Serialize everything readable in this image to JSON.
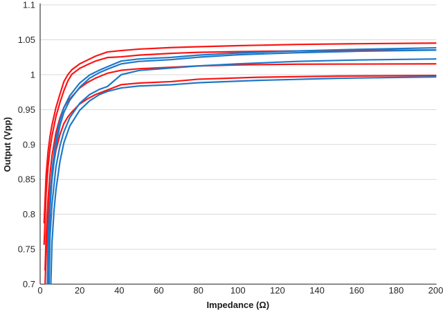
{
  "chart_data": {
    "type": "line",
    "xlabel": "Impedance (Ω)",
    "ylabel": "Output (Vpp)",
    "xlim": [
      0,
      200
    ],
    "ylim": [
      0.7,
      1.1
    ],
    "grid": "horizontal",
    "legend": "none",
    "colors": {
      "red": "#fb1414",
      "blue": "#1e78c8",
      "gridline": "#d9d9d9",
      "axis": "#4a4a4a",
      "tick_text": "#262626",
      "title_text": "#1a1a1a"
    },
    "x_ticks": [
      {
        "v": 0,
        "label": "0"
      },
      {
        "v": 20,
        "label": "20"
      },
      {
        "v": 40,
        "label": "40"
      },
      {
        "v": 60,
        "label": "60"
      },
      {
        "v": 80,
        "label": "80"
      },
      {
        "v": 100,
        "label": "100"
      },
      {
        "v": 120,
        "label": "120"
      },
      {
        "v": 140,
        "label": "140"
      },
      {
        "v": 160,
        "label": "160"
      },
      {
        "v": 180,
        "label": "180"
      },
      {
        "v": 200,
        "label": "200"
      }
    ],
    "y_ticks": [
      {
        "v": 1.1,
        "label": "1.1"
      },
      {
        "v": 1.05,
        "label": "1.05"
      },
      {
        "v": 1.0,
        "label": "1"
      },
      {
        "v": 0.95,
        "label": "0.95"
      },
      {
        "v": 0.9,
        "label": "0.9"
      },
      {
        "v": 0.85,
        "label": "0.85"
      },
      {
        "v": 0.8,
        "label": "0.8"
      },
      {
        "v": 0.75,
        "label": "0.75"
      },
      {
        "v": 0.7,
        "label": "0.7"
      }
    ],
    "series": [
      {
        "name": "red-1",
        "color": "#fb1414",
        "x": [
          2,
          3,
          4,
          5,
          6,
          8,
          10,
          12,
          14,
          16,
          20,
          24,
          28,
          34,
          41,
          50,
          66,
          80,
          100,
          130,
          160,
          200
        ],
        "y": [
          0.788,
          0.855,
          0.89,
          0.912,
          0.928,
          0.953,
          0.972,
          0.99,
          1.0,
          1.007,
          1.0155,
          1.021,
          1.0265,
          1.0325,
          1.0345,
          1.0366,
          1.0388,
          1.04,
          1.0415,
          1.0433,
          1.0443,
          1.0452
        ]
      },
      {
        "name": "red-2",
        "color": "#fb1414",
        "x": [
          2,
          3,
          4,
          5,
          6,
          8,
          10,
          12,
          14,
          16,
          20,
          24,
          28,
          34,
          41,
          50,
          66,
          80,
          100,
          130,
          160,
          200
        ],
        "y": [
          0.757,
          0.828,
          0.868,
          0.894,
          0.9125,
          0.94,
          0.96,
          0.977,
          0.991,
          1.0005,
          1.009,
          1.0145,
          1.0195,
          1.0245,
          1.0256,
          1.028,
          1.0305,
          1.032,
          1.033,
          1.034,
          1.0347,
          1.0353
        ]
      },
      {
        "name": "red-3",
        "color": "#fb1414",
        "x": [
          2.5,
          3,
          4,
          5,
          6,
          8,
          10,
          12,
          14,
          16,
          20,
          24,
          28,
          34,
          41,
          50,
          66,
          80,
          100,
          130,
          160,
          200
        ],
        "y": [
          0.72,
          0.768,
          0.822,
          0.858,
          0.884,
          0.917,
          0.938,
          0.953,
          0.962,
          0.9685,
          0.981,
          0.989,
          0.995,
          1.002,
          1.0063,
          1.0085,
          1.0105,
          1.0125,
          1.014,
          1.015,
          1.0152,
          1.0155
        ]
      },
      {
        "name": "red-4",
        "color": "#fb1414",
        "x": [
          2.5,
          3,
          4,
          5,
          6,
          8,
          10,
          12,
          14,
          16,
          20,
          24,
          28,
          34,
          41,
          50,
          66,
          80,
          110,
          150,
          200
        ],
        "y": [
          0.7,
          0.74,
          0.795,
          0.832,
          0.858,
          0.892,
          0.914,
          0.93,
          0.9395,
          0.9465,
          0.958,
          0.9655,
          0.9715,
          0.978,
          0.9857,
          0.988,
          0.99,
          0.9935,
          0.9963,
          0.998,
          0.9988
        ]
      },
      {
        "name": "blue-1",
        "color": "#1e78c8",
        "x": [
          3.5,
          4,
          5,
          6,
          8,
          10,
          12,
          15,
          20,
          25,
          30,
          35,
          41,
          50,
          66,
          80,
          100,
          130,
          160,
          200
        ],
        "y": [
          0.67,
          0.76,
          0.823,
          0.862,
          0.908,
          0.935,
          0.953,
          0.97,
          0.988,
          0.9995,
          1.0065,
          1.0125,
          1.0195,
          1.0225,
          1.0247,
          1.028,
          1.031,
          1.034,
          1.0362,
          1.0385
        ]
      },
      {
        "name": "blue-2",
        "color": "#1e78c8",
        "x": [
          3.7,
          4,
          5,
          6,
          8,
          10,
          12,
          15,
          20,
          25,
          30,
          35,
          41,
          50,
          66,
          80,
          100,
          130,
          160,
          200
        ],
        "y": [
          0.66,
          0.73,
          0.81,
          0.85,
          0.898,
          0.927,
          0.946,
          0.9635,
          0.982,
          0.995,
          1.003,
          1.009,
          1.0155,
          1.019,
          1.0215,
          1.025,
          1.0285,
          1.0315,
          1.0335,
          1.0352
        ]
      },
      {
        "name": "blue-3",
        "color": "#1e78c8",
        "x": [
          4.2,
          5,
          6,
          8,
          10,
          12,
          15,
          20,
          25,
          30,
          34,
          41,
          50,
          66,
          80,
          100,
          130,
          160,
          200
        ],
        "y": [
          0.66,
          0.77,
          0.815,
          0.868,
          0.898,
          0.918,
          0.9385,
          0.959,
          0.9715,
          0.979,
          0.983,
          1.0,
          1.006,
          1.0095,
          1.0125,
          1.0155,
          1.019,
          1.021,
          1.0225
        ]
      },
      {
        "name": "blue-4",
        "color": "#1e78c8",
        "x": [
          5,
          6,
          7,
          8,
          10,
          12,
          15,
          20,
          25,
          30,
          34,
          41,
          50,
          66,
          80,
          110,
          150,
          200
        ],
        "y": [
          0.66,
          0.76,
          0.805,
          0.835,
          0.8755,
          0.9025,
          0.9265,
          0.949,
          0.9625,
          0.9715,
          0.976,
          0.981,
          0.9838,
          0.9855,
          0.9885,
          0.9918,
          0.9948,
          0.9968
        ]
      }
    ]
  }
}
